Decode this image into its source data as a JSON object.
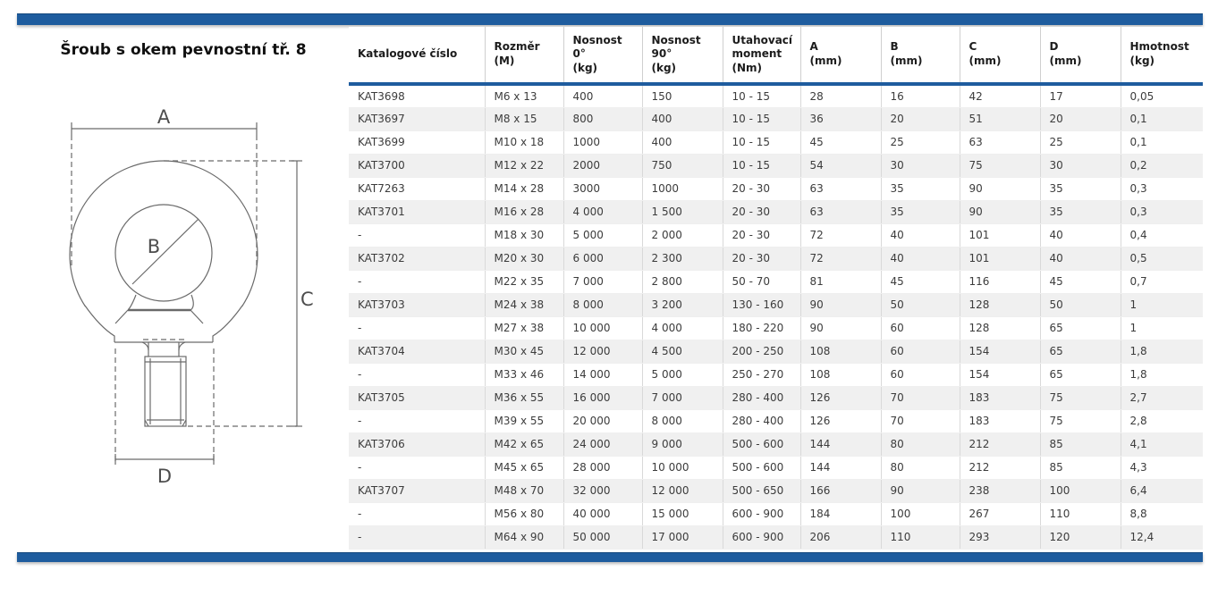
{
  "title": "Šroub s okem pevnostní tř. 8",
  "drawing": {
    "labels": {
      "a": "A",
      "b": "B",
      "c": "C",
      "d": "D"
    }
  },
  "colors": {
    "accent_blue": "#1e5c9e",
    "row_alt_gray": "#f0f0f0",
    "divider_gray": "#d9d9d9"
  },
  "table": {
    "columns": [
      "Katalogové číslo",
      "Rozměr\n(M)",
      "Nosnost\n0°\n(kg)",
      "Nosnost\n90°\n(kg)",
      "Utahovací\nmoment\n(Nm)",
      "A\n(mm)",
      "B\n(mm)",
      "C\n(mm)",
      "D\n(mm)",
      "Hmotnost\n(kg)"
    ],
    "rows": [
      [
        "KAT3698",
        "M6 x 13",
        "400",
        "150",
        "10 - 15",
        "28",
        "16",
        "42",
        "17",
        "0,05"
      ],
      [
        "KAT3697",
        "M8 x 15",
        "800",
        "400",
        "10 - 15",
        "36",
        "20",
        "51",
        "20",
        "0,1"
      ],
      [
        "KAT3699",
        "M10 x 18",
        "1000",
        "400",
        "10 - 15",
        "45",
        "25",
        "63",
        "25",
        "0,1"
      ],
      [
        "KAT3700",
        "M12 x 22",
        "2000",
        "750",
        "10 - 15",
        "54",
        "30",
        "75",
        "30",
        "0,2"
      ],
      [
        "KAT7263",
        "M14 x 28",
        "3000",
        "1000",
        "20 - 30",
        "63",
        "35",
        "90",
        "35",
        "0,3"
      ],
      [
        "KAT3701",
        "M16 x 28",
        "4 000",
        "1 500",
        "20 - 30",
        "63",
        "35",
        "90",
        "35",
        "0,3"
      ],
      [
        "-",
        "M18 x 30",
        "5 000",
        "2 000",
        "20 - 30",
        "72",
        "40",
        "101",
        "40",
        "0,4"
      ],
      [
        "KAT3702",
        "M20 x 30",
        "6 000",
        "2 300",
        "20 - 30",
        "72",
        "40",
        "101",
        "40",
        "0,5"
      ],
      [
        "-",
        "M22 x 35",
        "7 000",
        "2 800",
        "50 - 70",
        "81",
        "45",
        "116",
        "45",
        "0,7"
      ],
      [
        "KAT3703",
        "M24 x 38",
        "8 000",
        "3 200",
        "130 - 160",
        "90",
        "50",
        "128",
        "50",
        "1"
      ],
      [
        "-",
        "M27 x 38",
        "10 000",
        "4 000",
        "180 - 220",
        "90",
        "60",
        "128",
        "65",
        "1"
      ],
      [
        "KAT3704",
        "M30 x 45",
        "12 000",
        "4 500",
        "200 - 250",
        "108",
        "60",
        "154",
        "65",
        "1,8"
      ],
      [
        "-",
        "M33 x 46",
        "14 000",
        "5 000",
        "250 - 270",
        "108",
        "60",
        "154",
        "65",
        "1,8"
      ],
      [
        "KAT3705",
        "M36 x 55",
        "16 000",
        "7 000",
        "280 - 400",
        "126",
        "70",
        "183",
        "75",
        "2,7"
      ],
      [
        "-",
        "M39 x 55",
        "20 000",
        "8 000",
        "280 - 400",
        "126",
        "70",
        "183",
        "75",
        "2,8"
      ],
      [
        "KAT3706",
        "M42 x 65",
        "24 000",
        "9 000",
        "500 - 600",
        "144",
        "80",
        "212",
        "85",
        "4,1"
      ],
      [
        "-",
        "M45 x 65",
        "28 000",
        "10 000",
        "500 - 600",
        "144",
        "80",
        "212",
        "85",
        "4,3"
      ],
      [
        "KAT3707",
        "M48 x 70",
        "32 000",
        "12 000",
        "500 - 650",
        "166",
        "90",
        "238",
        "100",
        "6,4"
      ],
      [
        "-",
        "M56 x 80",
        "40 000",
        "15 000",
        "600 - 900",
        "184",
        "100",
        "267",
        "110",
        "8,8"
      ],
      [
        "-",
        "M64 x 90",
        "50 000",
        "17 000",
        "600 - 900",
        "206",
        "110",
        "293",
        "120",
        "12,4"
      ]
    ]
  }
}
